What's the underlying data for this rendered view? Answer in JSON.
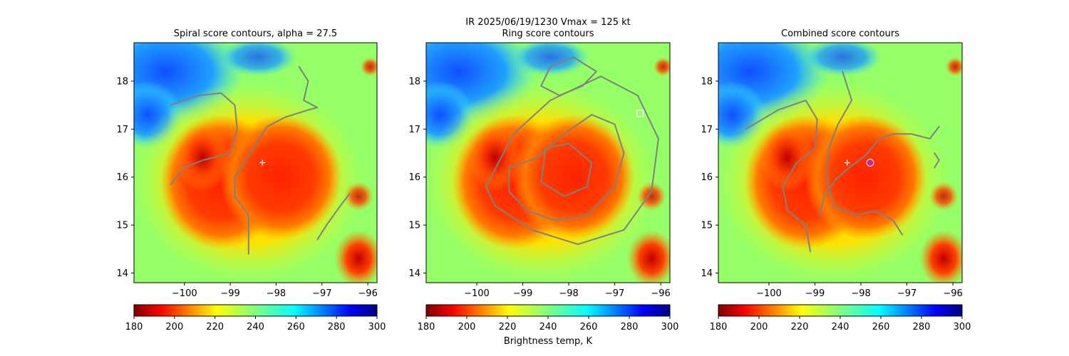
{
  "figure": {
    "suptitle_line1": "IR  2025/06/19/1230    Vmax = 125 kt",
    "colorbar_label": "Brightness temp, K"
  },
  "colors": {
    "contour": "#808080",
    "marker_white": "#ffffff",
    "marker_magenta": "#e0208a"
  },
  "chart_data": [
    {
      "type": "heatmap",
      "title": "Spiral score contours, alpha = 27.5",
      "xlabel": "",
      "ylabel": "",
      "xlim": [
        -101.1,
        -95.8
      ],
      "ylim": [
        13.8,
        18.8
      ],
      "xticks": [
        -100,
        -99,
        -98,
        -97,
        -96
      ],
      "yticks": [
        14,
        15,
        16,
        17,
        18
      ],
      "colorbar": {
        "range": [
          180,
          300
        ],
        "ticks": [
          180,
          200,
          220,
          240,
          260,
          280,
          300
        ],
        "colormap": "jet_r"
      },
      "markers": [
        {
          "x": -98.3,
          "y": 16.3,
          "symbol": "+",
          "color": "white"
        }
      ],
      "contours": [
        {
          "points": [
            [
              -100.3,
              17.5
            ],
            [
              -99.7,
              17.7
            ],
            [
              -99.2,
              17.75
            ],
            [
              -98.9,
              17.5
            ],
            [
              -98.85,
              17.0
            ],
            [
              -99.0,
              16.5
            ],
            [
              -99.6,
              16.35
            ],
            [
              -100.0,
              16.2
            ],
            [
              -100.3,
              15.85
            ]
          ]
        },
        {
          "points": [
            [
              -98.6,
              14.4
            ],
            [
              -98.6,
              15.2
            ],
            [
              -98.9,
              15.6
            ],
            [
              -98.9,
              16.0
            ],
            [
              -98.5,
              16.6
            ],
            [
              -98.2,
              17.05
            ],
            [
              -97.8,
              17.25
            ],
            [
              -97.3,
              17.4
            ],
            [
              -97.1,
              17.45
            ],
            [
              -97.4,
              17.6
            ],
            [
              -97.3,
              18.0
            ],
            [
              -97.5,
              18.3
            ]
          ]
        },
        {
          "points": [
            [
              -97.1,
              14.7
            ],
            [
              -96.9,
              15.0
            ],
            [
              -96.6,
              15.4
            ],
            [
              -96.4,
              15.65
            ]
          ]
        }
      ]
    },
    {
      "type": "heatmap",
      "title": "Ring score contours",
      "xlabel": "",
      "ylabel": "",
      "xlim": [
        -101.1,
        -95.8
      ],
      "ylim": [
        13.8,
        18.8
      ],
      "xticks": [
        -100,
        -99,
        -98,
        -97,
        -96
      ],
      "yticks": [
        14,
        15,
        16,
        17,
        18
      ],
      "colorbar": {
        "range": [
          180,
          300
        ],
        "ticks": [
          180,
          200,
          220,
          240,
          260,
          280,
          300
        ],
        "colormap": "jet_r"
      },
      "markers": [
        {
          "x": -96.45,
          "y": 17.33,
          "symbol": "square",
          "color": "white"
        }
      ],
      "contours": [
        {
          "points": [
            [
              -99.3,
              16.2
            ],
            [
              -98.7,
              16.4
            ],
            [
              -98.1,
              16.9
            ],
            [
              -97.5,
              17.3
            ],
            [
              -97.0,
              17.1
            ],
            [
              -96.8,
              16.5
            ],
            [
              -97.0,
              15.8
            ],
            [
              -97.6,
              15.2
            ],
            [
              -98.3,
              15.1
            ],
            [
              -98.9,
              15.3
            ],
            [
              -99.3,
              15.7
            ],
            [
              -99.3,
              16.2
            ]
          ]
        },
        {
          "points": [
            [
              -99.8,
              15.8
            ],
            [
              -99.2,
              16.9
            ],
            [
              -98.4,
              17.6
            ],
            [
              -97.3,
              18.1
            ],
            [
              -96.5,
              17.7
            ],
            [
              -96.05,
              16.8
            ],
            [
              -96.2,
              15.7
            ],
            [
              -96.8,
              14.9
            ],
            [
              -97.8,
              14.6
            ],
            [
              -98.8,
              14.9
            ],
            [
              -99.6,
              15.4
            ],
            [
              -99.8,
              15.8
            ]
          ]
        },
        {
          "points": [
            [
              -98.4,
              18.3
            ],
            [
              -97.9,
              18.5
            ],
            [
              -97.4,
              18.2
            ],
            [
              -97.7,
              17.9
            ],
            [
              -98.2,
              17.7
            ],
            [
              -98.6,
              17.9
            ],
            [
              -98.4,
              18.3
            ]
          ]
        },
        {
          "points": [
            [
              -98.5,
              16.6
            ],
            [
              -98.0,
              16.7
            ],
            [
              -97.5,
              16.3
            ],
            [
              -97.6,
              15.8
            ],
            [
              -98.1,
              15.6
            ],
            [
              -98.6,
              15.9
            ],
            [
              -98.5,
              16.6
            ]
          ]
        }
      ]
    },
    {
      "type": "heatmap",
      "title": "Combined score contours",
      "xlabel": "",
      "ylabel": "",
      "xlim": [
        -101.1,
        -95.8
      ],
      "ylim": [
        13.8,
        18.8
      ],
      "xticks": [
        -100,
        -99,
        -98,
        -97,
        -96
      ],
      "yticks": [
        14,
        15,
        16,
        17,
        18
      ],
      "colorbar": {
        "range": [
          180,
          300
        ],
        "ticks": [
          180,
          200,
          220,
          240,
          260,
          280,
          300
        ],
        "colormap": "jet_r"
      },
      "markers": [
        {
          "x": -98.3,
          "y": 16.3,
          "symbol": "+",
          "color": "white"
        },
        {
          "x": -97.8,
          "y": 16.3,
          "symbol": "circle",
          "color": "magenta"
        }
      ],
      "contours": [
        {
          "points": [
            [
              -100.5,
              17.0
            ],
            [
              -99.8,
              17.4
            ],
            [
              -99.2,
              17.6
            ],
            [
              -98.95,
              17.2
            ],
            [
              -99.0,
              16.6
            ],
            [
              -99.4,
              16.3
            ],
            [
              -99.7,
              15.8
            ],
            [
              -99.6,
              15.3
            ],
            [
              -99.2,
              15.0
            ],
            [
              -99.1,
              14.45
            ]
          ]
        },
        {
          "points": [
            [
              -98.4,
              18.2
            ],
            [
              -98.2,
              17.6
            ],
            [
              -98.5,
              17.1
            ],
            [
              -98.7,
              16.6
            ],
            [
              -98.75,
              16.0
            ],
            [
              -98.6,
              15.4
            ],
            [
              -98.1,
              15.2
            ],
            [
              -97.7,
              15.3
            ],
            [
              -97.3,
              15.1
            ],
            [
              -97.1,
              14.8
            ]
          ]
        },
        {
          "points": [
            [
              -98.9,
              15.2
            ],
            [
              -98.8,
              15.6
            ],
            [
              -98.55,
              15.95
            ],
            [
              -98.25,
              16.2
            ],
            [
              -97.9,
              16.45
            ],
            [
              -97.6,
              16.8
            ],
            [
              -97.3,
              16.9
            ],
            [
              -96.9,
              16.9
            ],
            [
              -96.5,
              16.8
            ],
            [
              -96.3,
              17.05
            ]
          ]
        },
        {
          "points": [
            [
              -96.4,
              16.2
            ],
            [
              -96.3,
              16.35
            ],
            [
              -96.4,
              16.5
            ]
          ]
        }
      ]
    }
  ]
}
